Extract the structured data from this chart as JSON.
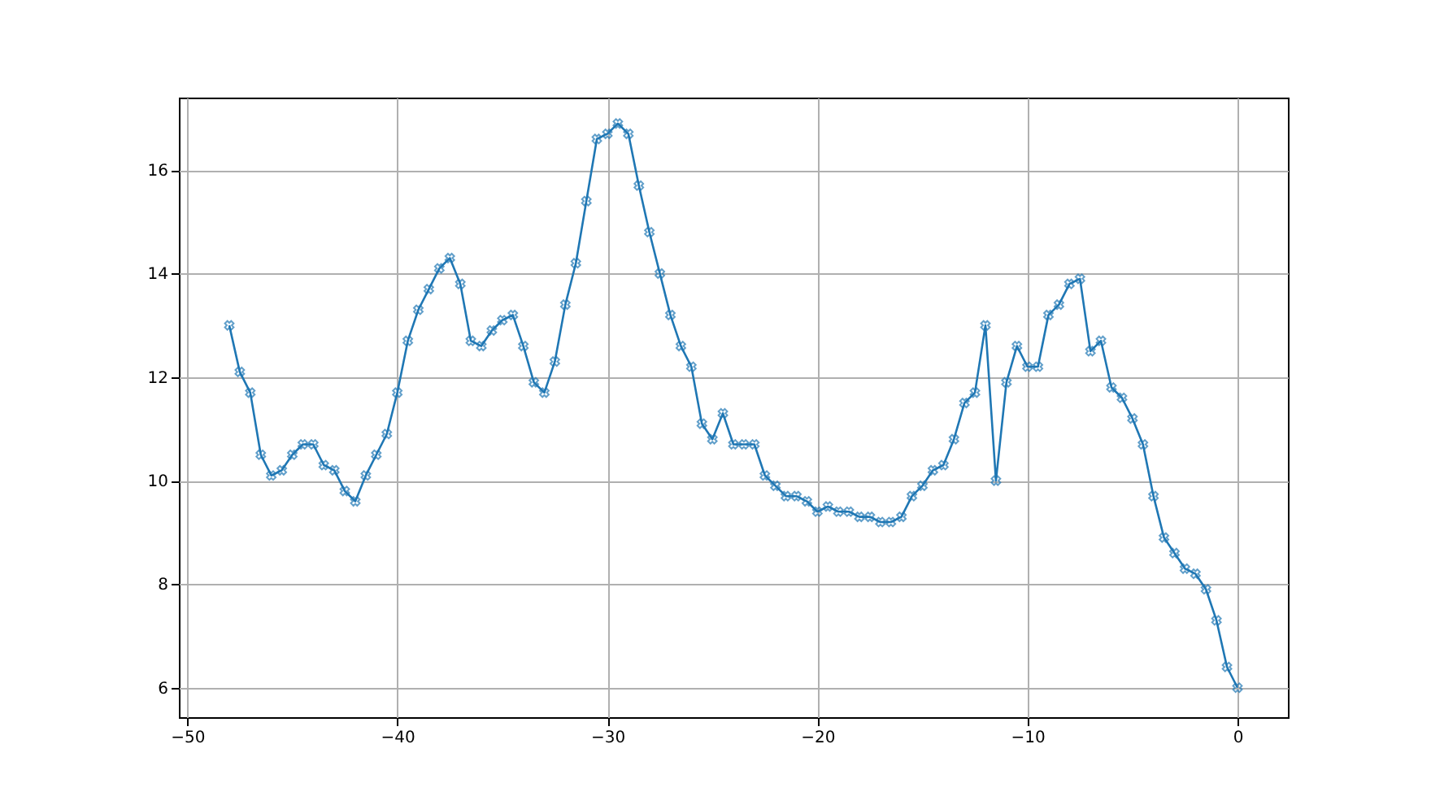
{
  "chart_data": {
    "type": "line",
    "x": [
      -48,
      -47.5,
      -47,
      -46.5,
      -46,
      -45.5,
      -45,
      -44.5,
      -44,
      -43.5,
      -43,
      -42.5,
      -42,
      -41.5,
      -41,
      -40.5,
      -40,
      -39.5,
      -39,
      -38.5,
      -38,
      -37.5,
      -37,
      -36.5,
      -36,
      -35.5,
      -35,
      -34.5,
      -34,
      -33.5,
      -33,
      -32.5,
      -32,
      -31.5,
      -31,
      -30.5,
      -30,
      -29.5,
      -29,
      -28.5,
      -28,
      -27.5,
      -27,
      -26.5,
      -26,
      -25.5,
      -25,
      -24.5,
      -24,
      -23.5,
      -23,
      -22.5,
      -22,
      -21.5,
      -21,
      -20.5,
      -20,
      -19.5,
      -19,
      -18.5,
      -18,
      -17.5,
      -17,
      -16.5,
      -16,
      -15.5,
      -15,
      -14.5,
      -14,
      -13.5,
      -13,
      -12.5,
      -12,
      -11.5,
      -11,
      -10.5,
      -10,
      -9.5,
      -9,
      -8.5,
      -8,
      -7.5,
      -7,
      -6.5,
      -6,
      -5.5,
      -5,
      -4.5,
      -4,
      -3.5,
      -3,
      -2.5,
      -2,
      -1.5,
      -1,
      -0.5,
      0
    ],
    "series": [
      {
        "color": "#1f77b4",
        "values": [
          13.0,
          12.1,
          11.7,
          10.5,
          10.1,
          10.2,
          10.5,
          10.7,
          10.7,
          10.3,
          10.2,
          9.8,
          9.6,
          10.1,
          10.5,
          10.9,
          11.7,
          12.7,
          13.3,
          13.7,
          14.1,
          14.3,
          13.8,
          12.7,
          12.6,
          12.9,
          13.1,
          13.2,
          12.6,
          11.9,
          11.7,
          12.3,
          13.4,
          14.2,
          15.4,
          16.6,
          16.7,
          16.9,
          16.7,
          15.7,
          14.8,
          14.0,
          13.2,
          12.6,
          12.2,
          11.1,
          10.8,
          11.3,
          10.7,
          10.7,
          10.7,
          10.1,
          9.9,
          9.7,
          9.7,
          9.6,
          9.4,
          9.5,
          9.4,
          9.4,
          9.3,
          9.3,
          9.2,
          9.2,
          9.3,
          9.7,
          9.9,
          10.2,
          10.3,
          10.8,
          11.5,
          11.7,
          13.0,
          10.0,
          11.9,
          12.6,
          12.2,
          12.2,
          13.2,
          13.4,
          13.8,
          13.9,
          12.5,
          12.7,
          11.8,
          11.6,
          11.2,
          10.7,
          9.7,
          8.9,
          8.6,
          8.3,
          8.2,
          7.9,
          7.3,
          6.4,
          6.0
        ]
      }
    ],
    "xlim": [
      -50.4,
      2.4
    ],
    "xticks": [
      -50,
      -40,
      -30,
      -20,
      -10,
      0
    ],
    "ylim": [
      5.43,
      17.4
    ],
    "yticks": [
      6,
      8,
      10,
      12,
      14,
      16
    ],
    "grid": true,
    "marker": "cross",
    "line_style": "solid"
  }
}
